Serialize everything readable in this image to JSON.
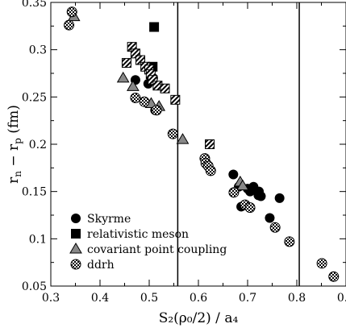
{
  "chart_data": {
    "type": "scatter",
    "xlabel": "S₂(ρ₀/2) / a₄",
    "ylabel_main": "r",
    "ylabel_sub1": "n",
    "ylabel_sep": " − r",
    "ylabel_sub2": "p",
    "ylabel_unit": " (fm)",
    "xlim": [
      0.3,
      0.9
    ],
    "ylim": [
      0.05,
      0.35
    ],
    "xticks": [
      "0.3",
      "0.4",
      "0.5",
      "0.6",
      "0.7",
      "0.8",
      "0.9"
    ],
    "yticks": [
      "0.05",
      "0.1",
      "0.15",
      "0.2",
      "0.25",
      "0.3",
      "0.35"
    ],
    "vertical_lines": [
      0.558,
      0.805
    ],
    "legend_position": "bottom-left",
    "series": [
      {
        "name": "Skyrme",
        "marker": "circle",
        "points": [
          [
            0.472,
            0.268
          ],
          [
            0.502,
            0.278
          ],
          [
            0.508,
            0.27
          ],
          [
            0.498,
            0.264
          ],
          [
            0.512,
            0.236
          ],
          [
            0.671,
            0.168
          ],
          [
            0.682,
            0.155
          ],
          [
            0.7,
            0.153
          ],
          [
            0.712,
            0.155
          ],
          [
            0.705,
            0.15
          ],
          [
            0.723,
            0.15
          ],
          [
            0.727,
            0.145
          ],
          [
            0.722,
            0.146
          ],
          [
            0.687,
            0.134
          ],
          [
            0.745,
            0.122
          ],
          [
            0.765,
            0.143
          ]
        ]
      },
      {
        "name": "relativistic meson",
        "marker": "square",
        "points": [
          [
            0.51,
            0.324
          ],
          [
            0.507,
            0.282
          ]
        ]
      },
      {
        "name": "covariant point coupling",
        "marker": "triangle",
        "points": [
          [
            0.347,
            0.335
          ],
          [
            0.447,
            0.27
          ],
          [
            0.467,
            0.261
          ],
          [
            0.504,
            0.243
          ],
          [
            0.52,
            0.24
          ],
          [
            0.568,
            0.205
          ],
          [
            0.685,
            0.16
          ],
          [
            0.69,
            0.156
          ]
        ]
      },
      {
        "name": "ddrh",
        "marker": "checker-circle",
        "points": [
          [
            0.337,
            0.326
          ],
          [
            0.343,
            0.34
          ],
          [
            0.472,
            0.249
          ],
          [
            0.49,
            0.245
          ],
          [
            0.515,
            0.236
          ],
          [
            0.548,
            0.211
          ],
          [
            0.613,
            0.185
          ],
          [
            0.615,
            0.18
          ],
          [
            0.62,
            0.177
          ],
          [
            0.625,
            0.172
          ],
          [
            0.672,
            0.149
          ],
          [
            0.695,
            0.136
          ],
          [
            0.705,
            0.133
          ],
          [
            0.756,
            0.112
          ],
          [
            0.785,
            0.097
          ],
          [
            0.851,
            0.074
          ],
          [
            0.875,
            0.06
          ]
        ]
      },
      {
        "name": "ddrh",
        "marker": "checker-square",
        "points": [
          [
            0.454,
            0.286
          ],
          [
            0.465,
            0.303
          ],
          [
            0.472,
            0.296
          ],
          [
            0.482,
            0.289
          ],
          [
            0.492,
            0.282
          ],
          [
            0.5,
            0.279
          ],
          [
            0.503,
            0.274
          ],
          [
            0.507,
            0.268
          ],
          [
            0.517,
            0.262
          ],
          [
            0.532,
            0.259
          ],
          [
            0.553,
            0.247
          ],
          [
            0.623,
            0.2
          ]
        ]
      }
    ],
    "legend": [
      {
        "label": "Skyrme",
        "marker": "circle"
      },
      {
        "label": "relativistic meson",
        "marker": "square"
      },
      {
        "label": "covariant point coupling",
        "marker": "triangle"
      },
      {
        "label": "ddrh",
        "marker": "checker-circle"
      }
    ]
  }
}
